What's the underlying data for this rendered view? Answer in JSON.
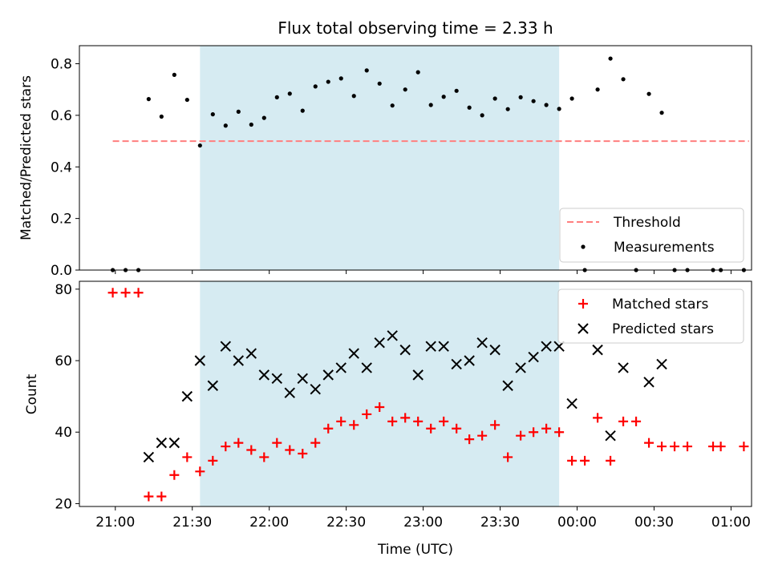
{
  "chart_data": [
    {
      "type": "scatter",
      "title": "Flux total observing time = 2.33 h",
      "xlabel": "",
      "ylabel": "Matched/Predicted stars",
      "xlim": [
        "20:46",
        "01:08"
      ],
      "ylim": [
        0,
        0.87
      ],
      "yticks": [
        0.0,
        0.2,
        0.4,
        0.6,
        0.8
      ],
      "yticklabels": [
        "0.0",
        "0.2",
        "0.4",
        "0.6",
        "0.8"
      ],
      "shaded_span": [
        "21:33",
        "23:53"
      ],
      "shade_color": "#add8e6",
      "threshold": {
        "value": 0.5,
        "x_range": [
          "20:59",
          "01:07"
        ],
        "color": "#ff7f7f"
      },
      "legend": {
        "position": "lower-right",
        "entries": [
          "Threshold",
          "Measurements"
        ]
      },
      "series": [
        {
          "name": "Measurements",
          "color": "#000000",
          "points": [
            [
              "20:59",
              0.0
            ],
            [
              "21:04",
              0.0
            ],
            [
              "21:09",
              0.0
            ],
            [
              "21:13",
              0.663
            ],
            [
              "21:18",
              0.595
            ],
            [
              "21:23",
              0.757
            ],
            [
              "21:28",
              0.66
            ],
            [
              "21:33",
              0.483
            ],
            [
              "21:38",
              0.604
            ],
            [
              "21:43",
              0.56
            ],
            [
              "21:48",
              0.614
            ],
            [
              "21:53",
              0.564
            ],
            [
              "21:58",
              0.59
            ],
            [
              "22:03",
              0.67
            ],
            [
              "22:08",
              0.684
            ],
            [
              "22:13",
              0.618
            ],
            [
              "22:18",
              0.712
            ],
            [
              "22:23",
              0.73
            ],
            [
              "22:28",
              0.743
            ],
            [
              "22:33",
              0.675
            ],
            [
              "22:38",
              0.774
            ],
            [
              "22:43",
              0.723
            ],
            [
              "22:48",
              0.638
            ],
            [
              "22:53",
              0.7
            ],
            [
              "22:58",
              0.767
            ],
            [
              "23:03",
              0.64
            ],
            [
              "23:08",
              0.672
            ],
            [
              "23:13",
              0.695
            ],
            [
              "23:18",
              0.63
            ],
            [
              "23:23",
              0.6
            ],
            [
              "23:28",
              0.665
            ],
            [
              "23:33",
              0.624
            ],
            [
              "23:38",
              0.67
            ],
            [
              "23:43",
              0.655
            ],
            [
              "23:48",
              0.64
            ],
            [
              "23:53",
              0.625
            ],
            [
              "23:58",
              0.665
            ],
            [
              "00:03",
              0.0
            ],
            [
              "00:08",
              0.7
            ],
            [
              "00:13",
              0.82
            ],
            [
              "00:18",
              0.74
            ],
            [
              "00:23",
              0.0
            ],
            [
              "00:28",
              0.683
            ],
            [
              "00:33",
              0.61
            ],
            [
              "00:38",
              0.0
            ],
            [
              "00:43",
              0.0
            ],
            [
              "00:53",
              0.0
            ],
            [
              "00:56",
              0.0
            ],
            [
              "01:05",
              0.0
            ]
          ]
        }
      ]
    },
    {
      "type": "scatter",
      "title": "",
      "xlabel": "Time (UTC)",
      "ylabel": "Count",
      "xlim": [
        "20:46",
        "01:08"
      ],
      "ylim": [
        19.2,
        82.2
      ],
      "yticks": [
        20,
        40,
        60,
        80
      ],
      "yticklabels": [
        "20",
        "40",
        "60",
        "80"
      ],
      "xticks": [
        "21:00",
        "21:30",
        "22:00",
        "22:30",
        "23:00",
        "23:30",
        "00:00",
        "00:30",
        "01:00"
      ],
      "shaded_span": [
        "21:33",
        "23:53"
      ],
      "shade_color": "#add8e6",
      "legend": {
        "position": "upper-right",
        "entries": [
          "Matched stars",
          "Predicted stars"
        ]
      },
      "series": [
        {
          "name": "Matched stars",
          "marker": "+",
          "color": "#ff0000",
          "points": [
            [
              "20:59",
              79
            ],
            [
              "21:04",
              79
            ],
            [
              "21:09",
              79
            ],
            [
              "21:13",
              22
            ],
            [
              "21:18",
              22
            ],
            [
              "21:23",
              28
            ],
            [
              "21:28",
              33
            ],
            [
              "21:33",
              29
            ],
            [
              "21:38",
              32
            ],
            [
              "21:43",
              36
            ],
            [
              "21:48",
              37
            ],
            [
              "21:53",
              35
            ],
            [
              "21:58",
              33
            ],
            [
              "22:03",
              37
            ],
            [
              "22:08",
              35
            ],
            [
              "22:13",
              34
            ],
            [
              "22:18",
              37
            ],
            [
              "22:23",
              41
            ],
            [
              "22:28",
              43
            ],
            [
              "22:33",
              42
            ],
            [
              "22:38",
              45
            ],
            [
              "22:43",
              47
            ],
            [
              "22:48",
              43
            ],
            [
              "22:53",
              44
            ],
            [
              "22:58",
              43
            ],
            [
              "23:03",
              41
            ],
            [
              "23:08",
              43
            ],
            [
              "23:13",
              41
            ],
            [
              "23:18",
              38
            ],
            [
              "23:23",
              39
            ],
            [
              "23:28",
              42
            ],
            [
              "23:33",
              33
            ],
            [
              "23:38",
              39
            ],
            [
              "23:43",
              40
            ],
            [
              "23:48",
              41
            ],
            [
              "23:53",
              40
            ],
            [
              "23:58",
              32
            ],
            [
              "00:03",
              32
            ],
            [
              "00:08",
              44
            ],
            [
              "00:13",
              32
            ],
            [
              "00:18",
              43
            ],
            [
              "00:23",
              43
            ],
            [
              "00:28",
              37
            ],
            [
              "00:33",
              36
            ],
            [
              "00:38",
              36
            ],
            [
              "00:43",
              36
            ],
            [
              "00:53",
              36
            ],
            [
              "00:56",
              36
            ],
            [
              "01:05",
              36
            ]
          ]
        },
        {
          "name": "Predicted stars",
          "marker": "x",
          "color": "#000000",
          "points": [
            [
              "21:13",
              33
            ],
            [
              "21:18",
              37
            ],
            [
              "21:23",
              37
            ],
            [
              "21:28",
              50
            ],
            [
              "21:33",
              60
            ],
            [
              "21:38",
              53
            ],
            [
              "21:43",
              64
            ],
            [
              "21:48",
              60
            ],
            [
              "21:53",
              62
            ],
            [
              "21:58",
              56
            ],
            [
              "22:03",
              55
            ],
            [
              "22:08",
              51
            ],
            [
              "22:13",
              55
            ],
            [
              "22:18",
              52
            ],
            [
              "22:23",
              56
            ],
            [
              "22:28",
              58
            ],
            [
              "22:33",
              62
            ],
            [
              "22:38",
              58
            ],
            [
              "22:43",
              65
            ],
            [
              "22:48",
              67
            ],
            [
              "22:53",
              63
            ],
            [
              "22:58",
              56
            ],
            [
              "23:03",
              64
            ],
            [
              "23:08",
              64
            ],
            [
              "23:13",
              59
            ],
            [
              "23:18",
              60
            ],
            [
              "23:23",
              65
            ],
            [
              "23:28",
              63
            ],
            [
              "23:33",
              53
            ],
            [
              "23:38",
              58
            ],
            [
              "23:43",
              61
            ],
            [
              "23:48",
              64
            ],
            [
              "23:53",
              64
            ],
            [
              "23:58",
              48
            ],
            [
              "00:08",
              63
            ],
            [
              "00:13",
              39
            ],
            [
              "00:18",
              58
            ],
            [
              "00:28",
              54
            ],
            [
              "00:33",
              59
            ]
          ]
        }
      ]
    }
  ]
}
